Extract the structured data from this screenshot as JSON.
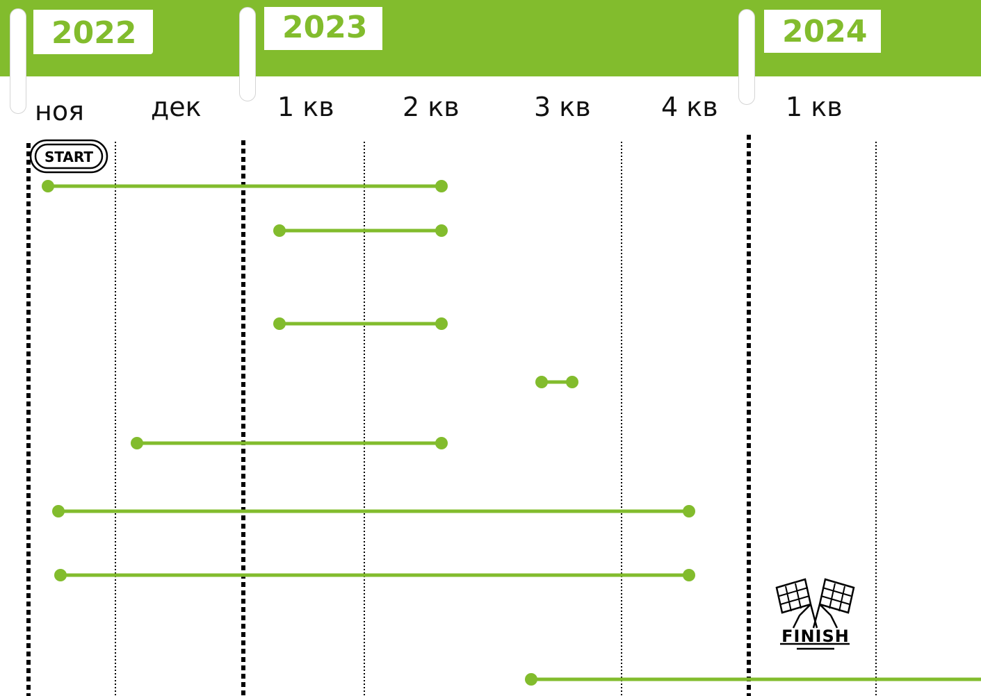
{
  "years": [
    {
      "label": "2022"
    },
    {
      "label": "2023"
    },
    {
      "label": "2024"
    }
  ],
  "periods": [
    {
      "label": "ноя"
    },
    {
      "label": "дек"
    },
    {
      "label": "1 кв"
    },
    {
      "label": "2 кв"
    },
    {
      "label": "3 кв"
    },
    {
      "label": "4 кв"
    },
    {
      "label": "1 кв"
    }
  ],
  "start_badge": "START",
  "finish_badge": "FINISH",
  "colors": {
    "accent": "#82bc2d",
    "text": "#111111"
  },
  "bars": [
    {
      "start": "ноя 2022",
      "end": "2 кв 2023"
    },
    {
      "start": "1 кв 2023",
      "end": "2 кв 2023"
    },
    {
      "start": "1 кв 2023",
      "end": "2 кв 2023"
    },
    {
      "start": "3 кв 2023",
      "end": "3 кв 2023"
    },
    {
      "start": "дек 2022",
      "end": "2 кв 2023"
    },
    {
      "start": "ноя 2022",
      "end": "4 кв 2023"
    },
    {
      "start": "ноя 2022",
      "end": "4 кв 2023"
    },
    {
      "start": "3 кв 2023",
      "end": "1 кв 2024"
    }
  ]
}
